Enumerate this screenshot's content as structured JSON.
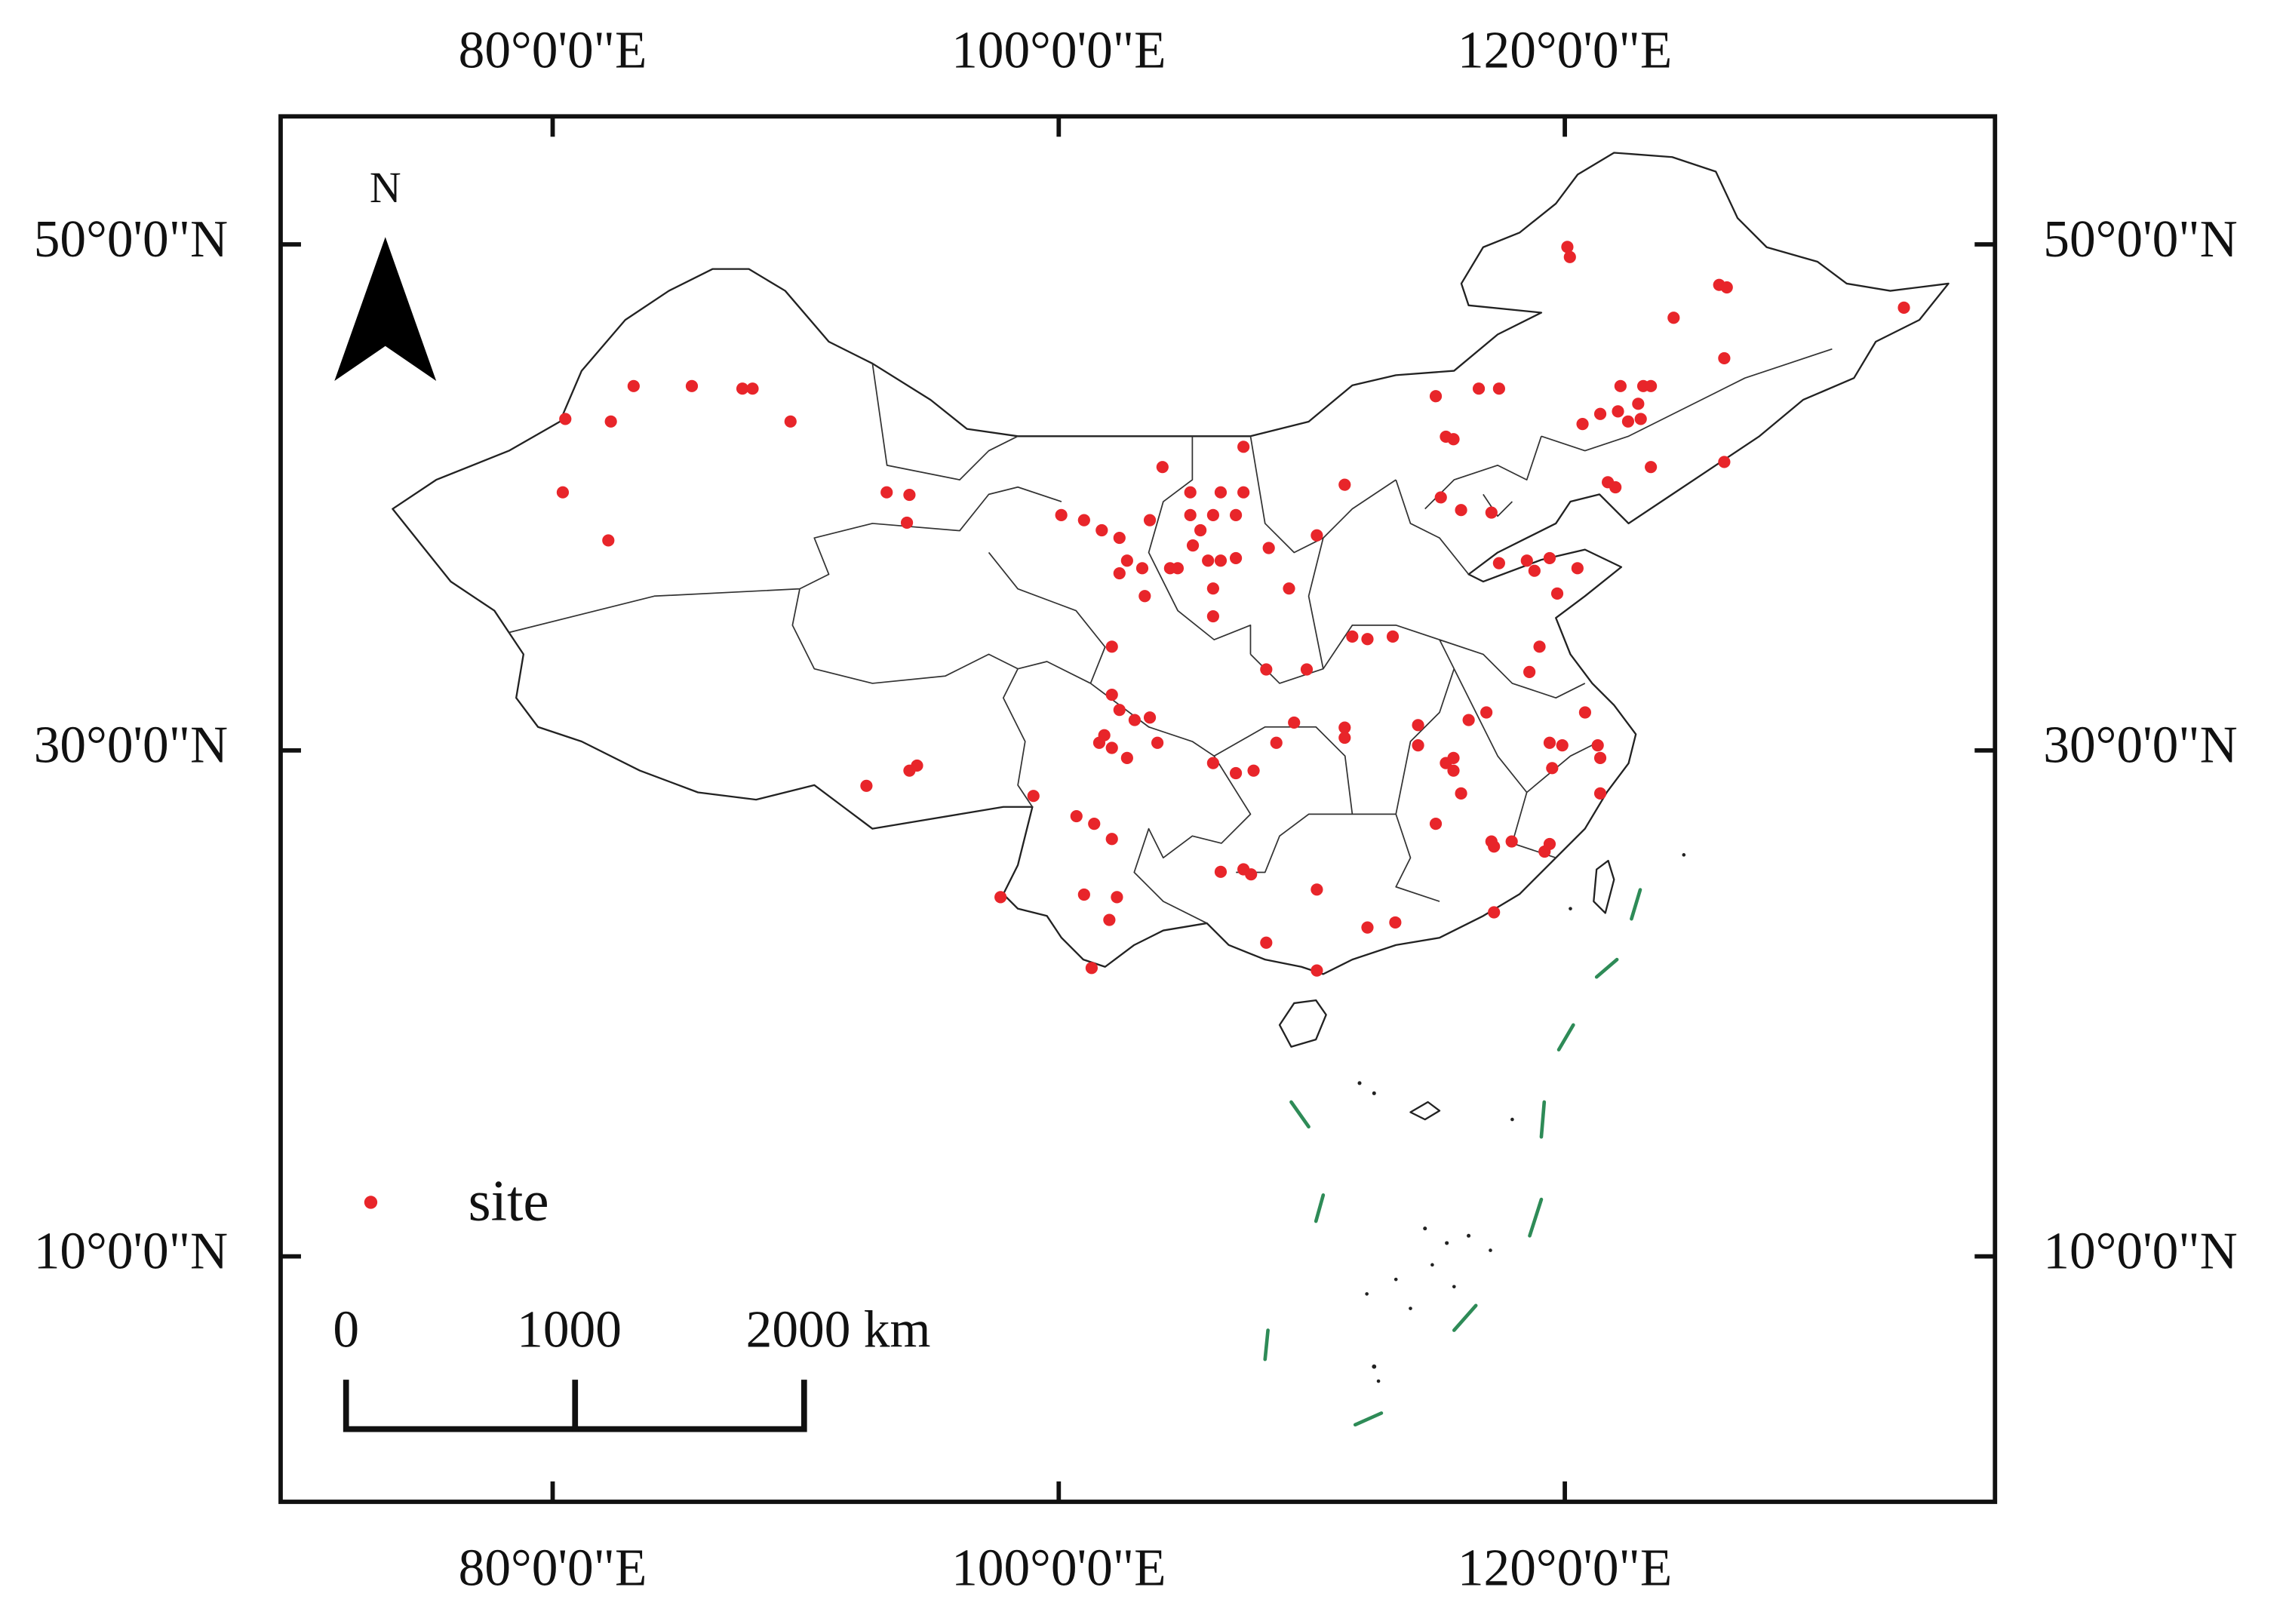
{
  "map": {
    "xlim": [
      69.25,
      137.0
    ],
    "ylim": [
      0.3,
      55.06
    ],
    "xticks": [
      {
        "value": 80,
        "label": "80°0'0\"E"
      },
      {
        "value": 100,
        "label": "100°0'0\"E"
      },
      {
        "value": 120,
        "label": "120°0'0\"E"
      }
    ],
    "yticks": [
      {
        "value": 10,
        "label": "10°0'0\"N"
      },
      {
        "value": 30,
        "label": "30°0'0\"N"
      },
      {
        "value": 50,
        "label": "50°0'0\"N"
      }
    ],
    "north_label": "N",
    "legend_label": "site",
    "site_color": "#e8252a",
    "scale_bar": [
      0,
      1000,
      {
        "value": 2000,
        "label": "2000 km"
      }
    ],
    "sites": [
      [
        80.5,
        43.1
      ],
      [
        82.3,
        43.0
      ],
      [
        83.2,
        44.4
      ],
      [
        85.5,
        44.4
      ],
      [
        87.5,
        44.3
      ],
      [
        87.9,
        44.3
      ],
      [
        89.4,
        43.0
      ],
      [
        80.4,
        40.2
      ],
      [
        82.2,
        38.3
      ],
      [
        93.2,
        40.2
      ],
      [
        94.1,
        40.1
      ],
      [
        94.0,
        39.0
      ],
      [
        92.4,
        28.6
      ],
      [
        94.1,
        29.2
      ],
      [
        94.4,
        29.4
      ],
      [
        100.1,
        39.3
      ],
      [
        101.0,
        39.1
      ],
      [
        101.7,
        38.7
      ],
      [
        102.4,
        38.4
      ],
      [
        103.6,
        39.1
      ],
      [
        102.7,
        37.5
      ],
      [
        103.3,
        37.2
      ],
      [
        102.4,
        37.0
      ],
      [
        103.4,
        36.1
      ],
      [
        104.1,
        41.2
      ],
      [
        105.2,
        40.2
      ],
      [
        106.4,
        40.2
      ],
      [
        107.3,
        40.2
      ],
      [
        107.3,
        42.0
      ],
      [
        105.2,
        39.3
      ],
      [
        105.6,
        38.7
      ],
      [
        106.1,
        39.3
      ],
      [
        107.0,
        39.3
      ],
      [
        105.3,
        38.1
      ],
      [
        105.9,
        37.5
      ],
      [
        106.4,
        37.5
      ],
      [
        107.0,
        37.6
      ],
      [
        104.4,
        37.2
      ],
      [
        104.7,
        37.2
      ],
      [
        108.3,
        38.0
      ],
      [
        110.2,
        38.5
      ],
      [
        109.1,
        36.4
      ],
      [
        106.1,
        35.3
      ],
      [
        106.1,
        36.4
      ],
      [
        102.1,
        34.1
      ],
      [
        102.1,
        32.2
      ],
      [
        102.4,
        31.6
      ],
      [
        101.8,
        30.6
      ],
      [
        103.0,
        31.2
      ],
      [
        103.6,
        31.3
      ],
      [
        103.9,
        30.3
      ],
      [
        101.6,
        30.3
      ],
      [
        102.1,
        30.1
      ],
      [
        102.7,
        29.7
      ],
      [
        100.7,
        27.4
      ],
      [
        101.4,
        27.1
      ],
      [
        102.1,
        26.5
      ],
      [
        99.0,
        28.2
      ],
      [
        106.1,
        29.5
      ],
      [
        107.0,
        29.1
      ],
      [
        107.7,
        29.2
      ],
      [
        108.2,
        33.2
      ],
      [
        109.8,
        33.2
      ],
      [
        108.6,
        30.3
      ],
      [
        109.3,
        31.1
      ],
      [
        111.3,
        30.9
      ],
      [
        111.3,
        30.5
      ],
      [
        111.6,
        34.5
      ],
      [
        112.2,
        34.4
      ],
      [
        113.2,
        34.5
      ],
      [
        97.7,
        24.2
      ],
      [
        101.0,
        24.3
      ],
      [
        102.3,
        24.2
      ],
      [
        102.0,
        23.3
      ],
      [
        101.3,
        21.4
      ],
      [
        106.4,
        25.2
      ],
      [
        107.3,
        25.3
      ],
      [
        107.6,
        25.1
      ],
      [
        108.2,
        22.4
      ],
      [
        110.2,
        24.5
      ],
      [
        110.2,
        21.3
      ],
      [
        112.2,
        23.0
      ],
      [
        113.3,
        23.2
      ],
      [
        117.2,
        23.6
      ],
      [
        114.2,
        31.0
      ],
      [
        114.2,
        30.2
      ],
      [
        114.9,
        27.1
      ],
      [
        115.3,
        29.5
      ],
      [
        115.6,
        29.2
      ],
      [
        115.9,
        28.3
      ],
      [
        115.6,
        29.7
      ],
      [
        116.2,
        31.2
      ],
      [
        116.9,
        31.5
      ],
      [
        117.1,
        26.4
      ],
      [
        117.9,
        26.4
      ],
      [
        117.2,
        26.2
      ],
      [
        119.4,
        26.3
      ],
      [
        119.2,
        26.0
      ],
      [
        119.4,
        30.3
      ],
      [
        119.9,
        30.2
      ],
      [
        119.5,
        29.3
      ],
      [
        120.8,
        31.5
      ],
      [
        121.3,
        30.2
      ],
      [
        121.4,
        28.3
      ],
      [
        121.4,
        29.7
      ],
      [
        115.1,
        40.0
      ],
      [
        115.9,
        39.5
      ],
      [
        117.1,
        39.4
      ],
      [
        117.4,
        37.4
      ],
      [
        118.5,
        37.5
      ],
      [
        118.8,
        37.1
      ],
      [
        119.4,
        37.6
      ],
      [
        120.5,
        37.2
      ],
      [
        119.7,
        36.2
      ],
      [
        118.6,
        33.1
      ],
      [
        119.0,
        34.1
      ],
      [
        120.1,
        49.9
      ],
      [
        120.2,
        49.5
      ],
      [
        124.3,
        47.1
      ],
      [
        126.1,
        48.4
      ],
      [
        126.4,
        48.3
      ],
      [
        126.3,
        45.5
      ],
      [
        133.4,
        47.5
      ],
      [
        116.6,
        44.3
      ],
      [
        117.4,
        44.3
      ],
      [
        114.9,
        44.0
      ],
      [
        115.3,
        42.4
      ],
      [
        115.6,
        42.3
      ],
      [
        120.7,
        42.9
      ],
      [
        121.4,
        43.3
      ],
      [
        122.1,
        43.4
      ],
      [
        122.2,
        44.4
      ],
      [
        122.5,
        43.0
      ],
      [
        122.9,
        43.7
      ],
      [
        123.1,
        44.4
      ],
      [
        123.4,
        44.4
      ],
      [
        123.0,
        43.1
      ],
      [
        121.7,
        40.6
      ],
      [
        122.0,
        40.4
      ],
      [
        123.4,
        41.2
      ],
      [
        126.3,
        41.4
      ],
      [
        111.3,
        40.5
      ]
    ]
  }
}
